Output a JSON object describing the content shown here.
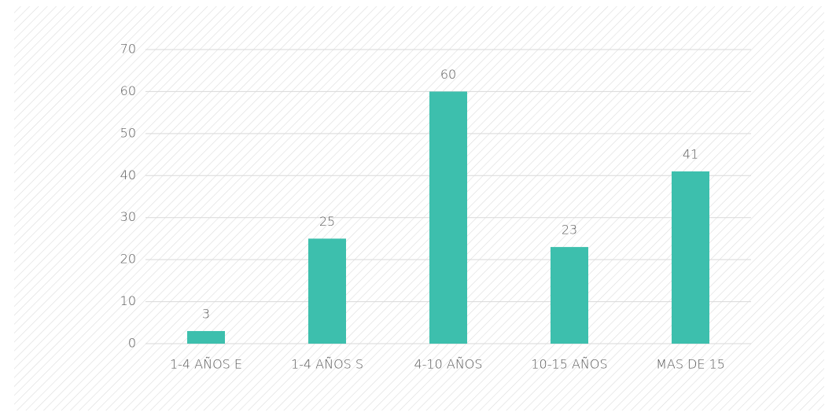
{
  "chart_data": {
    "type": "bar",
    "categories": [
      "1-4 AÑOS E",
      "1-4 AÑOS S",
      "4-10 AÑOS",
      "10-15 AÑOS",
      "MAS DE 15"
    ],
    "values": [
      3,
      25,
      60,
      23,
      41
    ],
    "color": "#3dbfad",
    "ylim": [
      0,
      70
    ],
    "yticks": [
      0,
      10,
      20,
      30,
      40,
      50,
      60,
      70
    ],
    "grid": true,
    "data_labels": true
  }
}
